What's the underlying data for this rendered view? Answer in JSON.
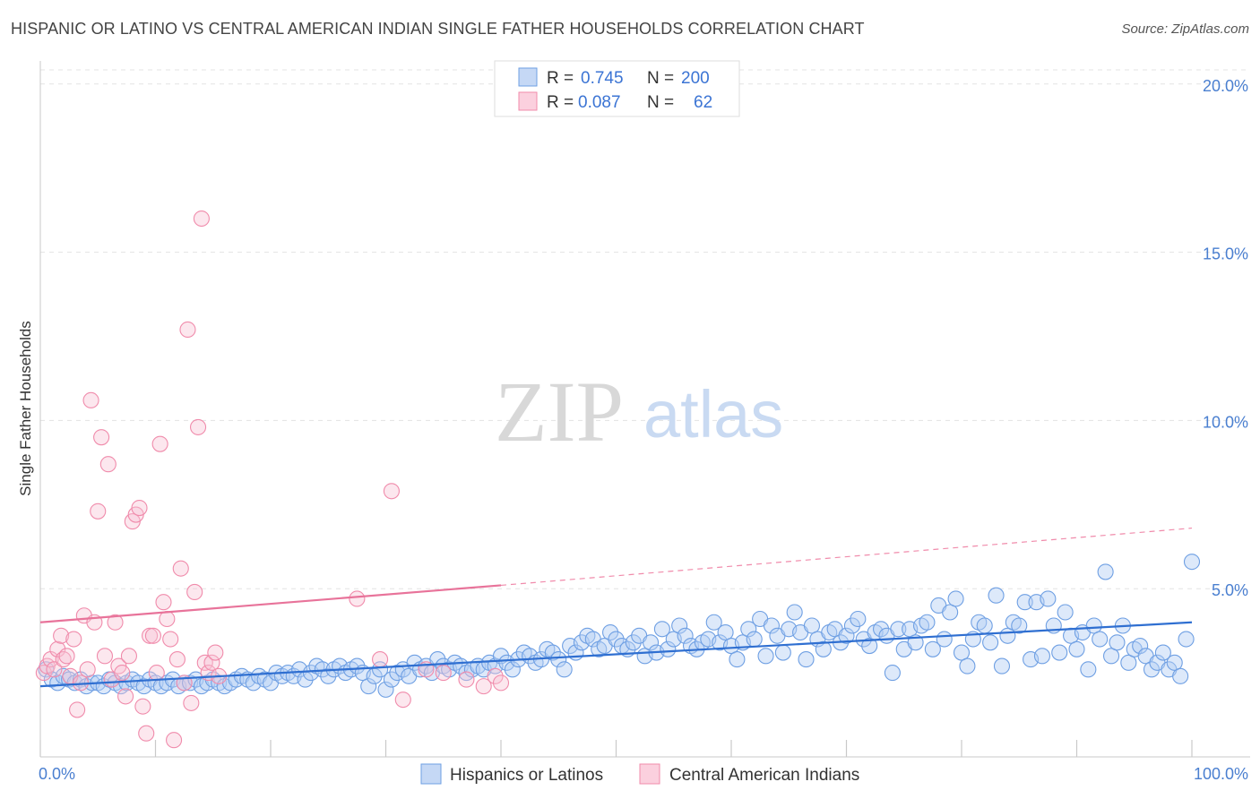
{
  "title": "HISPANIC OR LATINO VS CENTRAL AMERICAN INDIAN SINGLE FATHER HOUSEHOLDS CORRELATION CHART",
  "source": "Source: ZipAtlas.com",
  "watermark": {
    "zip": "ZIP",
    "atlas": "atlas"
  },
  "legend_top": [
    {
      "r_label": "R =",
      "r_value": "0.745",
      "n_label": "N =",
      "n_value": "200",
      "color": "#6e9fe3"
    },
    {
      "r_label": "R =",
      "r_value": "0.087",
      "n_label": "N =",
      "n_value": "62",
      "color": "#f08bab"
    }
  ],
  "chart_data": {
    "type": "scatter",
    "xlabel": "",
    "ylabel": "Single Father Households",
    "xlim": [
      0,
      100
    ],
    "ylim": [
      0,
      20.5
    ],
    "x_tick_labels": [
      "0.0%",
      "100.0%"
    ],
    "y_ticks": [
      5,
      10,
      15,
      20
    ],
    "y_tick_labels": [
      "5.0%",
      "10.0%",
      "15.0%",
      "20.0%"
    ],
    "grid": true,
    "legend_position": "top-center",
    "series": [
      {
        "name": "Hispanics or Latinos",
        "color": "#6e9fe3",
        "trend": {
          "x": [
            0,
            100
          ],
          "y": [
            2.1,
            4.0
          ],
          "dashed_from": null
        },
        "points": [
          [
            0.5,
            2.6
          ],
          [
            1,
            2.3
          ],
          [
            1.5,
            2.2
          ],
          [
            2,
            2.4
          ],
          [
            2.5,
            2.3
          ],
          [
            3,
            2.2
          ],
          [
            3.5,
            2.3
          ],
          [
            4,
            2.1
          ],
          [
            4.5,
            2.2
          ],
          [
            5,
            2.2
          ],
          [
            5.5,
            2.1
          ],
          [
            6,
            2.3
          ],
          [
            6.5,
            2.2
          ],
          [
            7,
            2.1
          ],
          [
            7.5,
            2.2
          ],
          [
            8,
            2.3
          ],
          [
            8.5,
            2.2
          ],
          [
            9,
            2.1
          ],
          [
            9.5,
            2.3
          ],
          [
            10,
            2.2
          ],
          [
            10.5,
            2.1
          ],
          [
            11,
            2.2
          ],
          [
            11.5,
            2.3
          ],
          [
            12,
            2.1
          ],
          [
            12.5,
            2.2
          ],
          [
            13,
            2.2
          ],
          [
            13.5,
            2.3
          ],
          [
            14,
            2.1
          ],
          [
            14.5,
            2.2
          ],
          [
            15,
            2.3
          ],
          [
            15.5,
            2.2
          ],
          [
            16,
            2.1
          ],
          [
            16.5,
            2.2
          ],
          [
            17,
            2.3
          ],
          [
            17.5,
            2.4
          ],
          [
            18,
            2.3
          ],
          [
            18.5,
            2.2
          ],
          [
            19,
            2.4
          ],
          [
            19.5,
            2.3
          ],
          [
            20,
            2.2
          ],
          [
            20.5,
            2.5
          ],
          [
            21,
            2.4
          ],
          [
            21.5,
            2.5
          ],
          [
            22,
            2.4
          ],
          [
            22.5,
            2.6
          ],
          [
            23,
            2.3
          ],
          [
            23.5,
            2.5
          ],
          [
            24,
            2.7
          ],
          [
            24.5,
            2.6
          ],
          [
            25,
            2.4
          ],
          [
            25.5,
            2.6
          ],
          [
            26,
            2.7
          ],
          [
            26.5,
            2.5
          ],
          [
            27,
            2.6
          ],
          [
            27.5,
            2.7
          ],
          [
            28,
            2.5
          ],
          [
            28.5,
            2.1
          ],
          [
            29,
            2.4
          ],
          [
            29.5,
            2.6
          ],
          [
            30,
            2.0
          ],
          [
            30.5,
            2.3
          ],
          [
            31,
            2.5
          ],
          [
            31.5,
            2.6
          ],
          [
            32,
            2.4
          ],
          [
            32.5,
            2.8
          ],
          [
            33,
            2.6
          ],
          [
            33.5,
            2.7
          ],
          [
            34,
            2.5
          ],
          [
            34.5,
            2.9
          ],
          [
            35,
            2.7
          ],
          [
            35.5,
            2.6
          ],
          [
            36,
            2.8
          ],
          [
            36.5,
            2.7
          ],
          [
            37,
            2.5
          ],
          [
            37.5,
            2.6
          ],
          [
            38,
            2.7
          ],
          [
            38.5,
            2.6
          ],
          [
            39,
            2.8
          ],
          [
            39.5,
            2.7
          ],
          [
            40,
            3.0
          ],
          [
            40.5,
            2.8
          ],
          [
            41,
            2.6
          ],
          [
            41.5,
            2.9
          ],
          [
            42,
            3.1
          ],
          [
            42.5,
            3.0
          ],
          [
            43,
            2.8
          ],
          [
            43.5,
            2.9
          ],
          [
            44,
            3.2
          ],
          [
            44.5,
            3.1
          ],
          [
            45,
            2.9
          ],
          [
            45.5,
            2.6
          ],
          [
            46,
            3.3
          ],
          [
            46.5,
            3.1
          ],
          [
            47,
            3.4
          ],
          [
            47.5,
            3.6
          ],
          [
            48,
            3.5
          ],
          [
            48.5,
            3.2
          ],
          [
            49,
            3.3
          ],
          [
            49.5,
            3.7
          ],
          [
            50,
            3.5
          ],
          [
            50.5,
            3.3
          ],
          [
            51,
            3.2
          ],
          [
            51.5,
            3.4
          ],
          [
            52,
            3.6
          ],
          [
            52.5,
            3.0
          ],
          [
            53,
            3.4
          ],
          [
            53.5,
            3.1
          ],
          [
            54,
            3.8
          ],
          [
            54.5,
            3.2
          ],
          [
            55,
            3.5
          ],
          [
            55.5,
            3.9
          ],
          [
            56,
            3.6
          ],
          [
            56.5,
            3.3
          ],
          [
            57,
            3.2
          ],
          [
            57.5,
            3.4
          ],
          [
            58,
            3.5
          ],
          [
            58.5,
            4.0
          ],
          [
            59,
            3.4
          ],
          [
            59.5,
            3.7
          ],
          [
            60,
            3.3
          ],
          [
            60.5,
            2.9
          ],
          [
            61,
            3.4
          ],
          [
            61.5,
            3.8
          ],
          [
            62,
            3.5
          ],
          [
            62.5,
            4.1
          ],
          [
            63,
            3.0
          ],
          [
            63.5,
            3.9
          ],
          [
            64,
            3.6
          ],
          [
            64.5,
            3.1
          ],
          [
            65,
            3.8
          ],
          [
            65.5,
            4.3
          ],
          [
            66,
            3.7
          ],
          [
            66.5,
            2.9
          ],
          [
            67,
            3.9
          ],
          [
            67.5,
            3.5
          ],
          [
            68,
            3.2
          ],
          [
            68.5,
            3.7
          ],
          [
            69,
            3.8
          ],
          [
            69.5,
            3.4
          ],
          [
            70,
            3.6
          ],
          [
            70.5,
            3.9
          ],
          [
            71,
            4.1
          ],
          [
            71.5,
            3.5
          ],
          [
            72,
            3.3
          ],
          [
            72.5,
            3.7
          ],
          [
            73,
            3.8
          ],
          [
            73.5,
            3.6
          ],
          [
            74,
            2.5
          ],
          [
            74.5,
            3.8
          ],
          [
            75,
            3.2
          ],
          [
            75.5,
            3.8
          ],
          [
            76,
            3.4
          ],
          [
            76.5,
            3.9
          ],
          [
            77,
            4.0
          ],
          [
            77.5,
            3.2
          ],
          [
            78,
            4.5
          ],
          [
            78.5,
            3.5
          ],
          [
            79,
            4.3
          ],
          [
            79.5,
            4.7
          ],
          [
            80,
            3.1
          ],
          [
            80.5,
            2.7
          ],
          [
            81,
            3.5
          ],
          [
            81.5,
            4.0
          ],
          [
            82,
            3.9
          ],
          [
            82.5,
            3.4
          ],
          [
            83,
            4.8
          ],
          [
            83.5,
            2.7
          ],
          [
            84,
            3.6
          ],
          [
            84.5,
            4.0
          ],
          [
            85,
            3.9
          ],
          [
            85.5,
            4.6
          ],
          [
            86,
            2.9
          ],
          [
            86.5,
            4.6
          ],
          [
            87,
            3.0
          ],
          [
            87.5,
            4.7
          ],
          [
            88,
            3.9
          ],
          [
            88.5,
            3.1
          ],
          [
            89,
            4.3
          ],
          [
            89.5,
            3.6
          ],
          [
            90,
            3.2
          ],
          [
            90.5,
            3.7
          ],
          [
            91,
            2.6
          ],
          [
            91.5,
            3.9
          ],
          [
            92,
            3.5
          ],
          [
            92.5,
            5.5
          ],
          [
            93,
            3.0
          ],
          [
            93.5,
            3.4
          ],
          [
            94,
            3.9
          ],
          [
            94.5,
            2.8
          ],
          [
            95,
            3.2
          ],
          [
            95.5,
            3.3
          ],
          [
            96,
            3.0
          ],
          [
            96.5,
            2.6
          ],
          [
            97,
            2.8
          ],
          [
            97.5,
            3.1
          ],
          [
            98,
            2.6
          ],
          [
            98.5,
            2.8
          ],
          [
            99,
            2.4
          ],
          [
            99.5,
            3.5
          ],
          [
            100,
            5.8
          ]
        ]
      },
      {
        "name": "Central American Indians",
        "color": "#f08bab",
        "trend": {
          "x": [
            0,
            40
          ],
          "y": [
            4.0,
            5.1
          ],
          "dashed_to": [
            100,
            6.8
          ]
        },
        "points": [
          [
            0.3,
            2.5
          ],
          [
            0.6,
            2.7
          ],
          [
            0.9,
            2.9
          ],
          [
            1.2,
            2.6
          ],
          [
            1.5,
            3.2
          ],
          [
            1.8,
            3.6
          ],
          [
            2.0,
            2.9
          ],
          [
            2.3,
            3.0
          ],
          [
            2.6,
            2.4
          ],
          [
            2.9,
            3.5
          ],
          [
            3.2,
            1.4
          ],
          [
            3.5,
            2.2
          ],
          [
            3.8,
            4.2
          ],
          [
            4.1,
            2.6
          ],
          [
            4.4,
            10.6
          ],
          [
            4.7,
            4.0
          ],
          [
            5.0,
            7.3
          ],
          [
            5.3,
            9.5
          ],
          [
            5.6,
            3.0
          ],
          [
            5.9,
            8.7
          ],
          [
            6.2,
            2.3
          ],
          [
            6.5,
            4.0
          ],
          [
            6.8,
            2.7
          ],
          [
            7.1,
            2.5
          ],
          [
            7.4,
            1.8
          ],
          [
            7.7,
            3.0
          ],
          [
            8.0,
            7.0
          ],
          [
            8.3,
            7.2
          ],
          [
            8.6,
            7.4
          ],
          [
            8.9,
            1.5
          ],
          [
            9.2,
            0.7
          ],
          [
            9.5,
            3.6
          ],
          [
            9.8,
            3.6
          ],
          [
            10.1,
            2.5
          ],
          [
            10.4,
            9.3
          ],
          [
            10.7,
            4.6
          ],
          [
            11.0,
            4.1
          ],
          [
            11.3,
            3.5
          ],
          [
            11.6,
            0.5
          ],
          [
            11.9,
            2.9
          ],
          [
            12.2,
            5.6
          ],
          [
            12.5,
            2.2
          ],
          [
            12.8,
            12.7
          ],
          [
            13.1,
            1.6
          ],
          [
            13.4,
            4.9
          ],
          [
            13.7,
            9.8
          ],
          [
            14.0,
            16.0
          ],
          [
            14.3,
            2.8
          ],
          [
            14.6,
            2.5
          ],
          [
            14.9,
            2.8
          ],
          [
            15.2,
            3.1
          ],
          [
            15.5,
            2.4
          ],
          [
            27.5,
            4.7
          ],
          [
            29.5,
            2.9
          ],
          [
            30.5,
            7.9
          ],
          [
            31.5,
            1.7
          ],
          [
            33.5,
            2.6
          ],
          [
            35,
            2.5
          ],
          [
            37,
            2.3
          ],
          [
            38.5,
            2.1
          ],
          [
            39.5,
            2.4
          ],
          [
            40.0,
            2.2
          ]
        ]
      }
    ]
  },
  "bottom_legend": [
    {
      "label": "Hispanics or Latinos",
      "color": "#6e9fe3"
    },
    {
      "label": "Central American Indians",
      "color": "#f08bab"
    }
  ]
}
